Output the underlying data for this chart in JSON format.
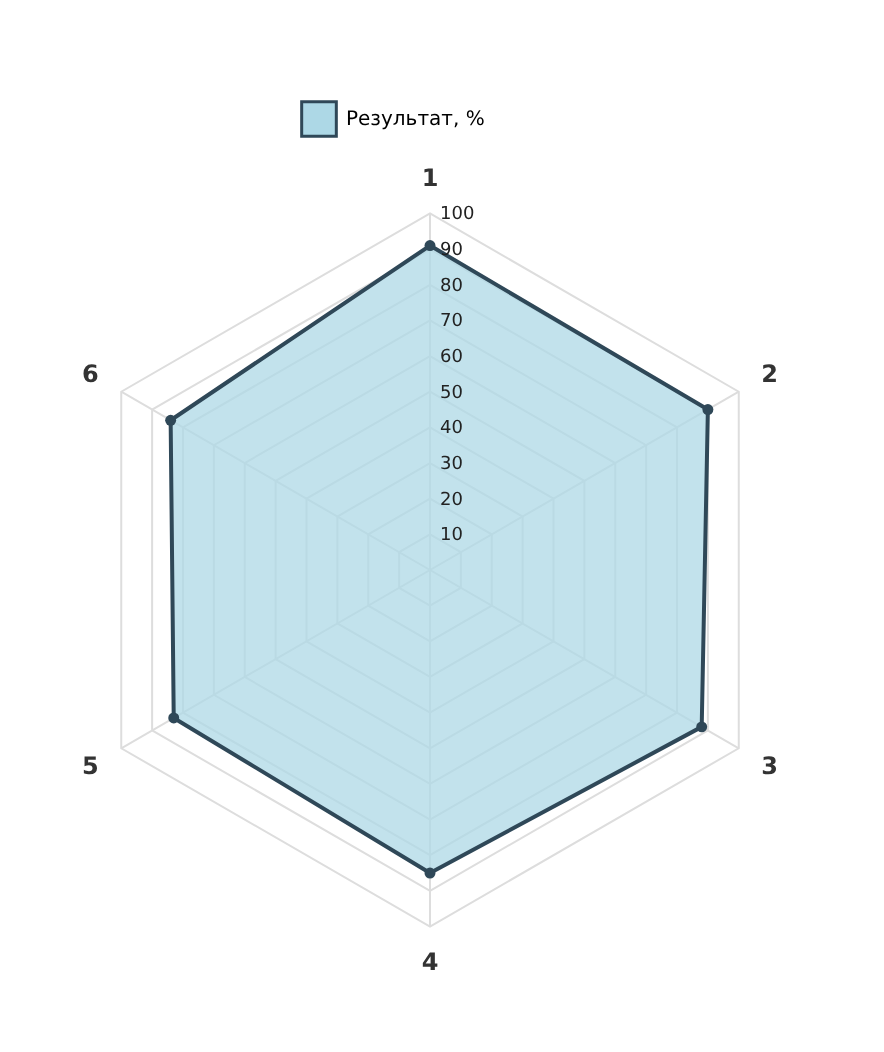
{
  "chart_data": {
    "type": "radar",
    "categories": [
      "1",
      "2",
      "3",
      "4",
      "5",
      "6"
    ],
    "series": [
      {
        "name": "Результат, %",
        "color": "#add8e6",
        "values": [
          91,
          90,
          88,
          85,
          83,
          84
        ]
      }
    ],
    "ylim": [
      0,
      100
    ],
    "yticks": [
      10,
      20,
      30,
      40,
      50,
      60,
      70,
      80,
      90,
      100
    ],
    "grid": true,
    "legend": "top",
    "marker": "circle"
  }
}
